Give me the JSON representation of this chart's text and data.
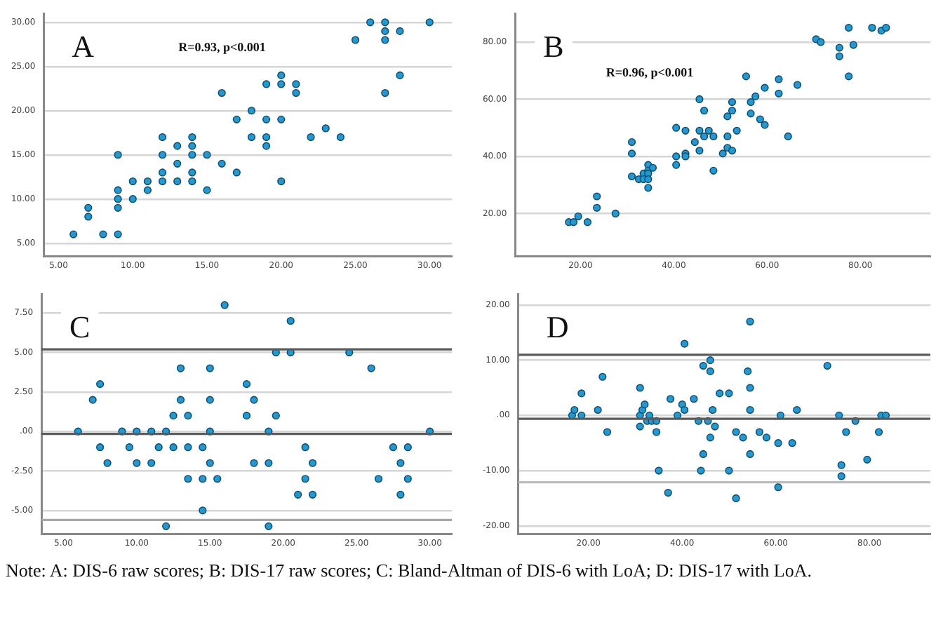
{
  "chart_data": [
    {
      "type": "scatter",
      "title": "A",
      "annotations": [
        "R=0.93, p<0.001"
      ],
      "color": "#1e9ad6",
      "marker": "circle",
      "grid": "y",
      "x": [
        6,
        7,
        7,
        8,
        9,
        9,
        9,
        9,
        9,
        10,
        10,
        11,
        11,
        12,
        12,
        12,
        12,
        13,
        13,
        13,
        14,
        14,
        14,
        14,
        14,
        15,
        15,
        16,
        16,
        17,
        17,
        18,
        18,
        19,
        19,
        19,
        19,
        20,
        20,
        20,
        20,
        21,
        21,
        22,
        23,
        24,
        25,
        26,
        27,
        27,
        27,
        27,
        28,
        28,
        30
      ],
      "values": [
        6,
        9,
        8,
        6,
        6,
        15,
        11,
        10,
        9,
        12,
        10,
        12,
        11,
        17,
        15,
        13,
        12,
        16,
        14,
        12,
        17,
        16,
        15,
        13,
        12,
        15,
        11,
        22,
        14,
        19,
        13,
        20,
        17,
        23,
        19,
        17,
        16,
        24,
        23,
        19,
        12,
        23,
        22,
        17,
        18,
        17,
        28,
        30,
        30,
        29,
        28,
        22,
        29,
        24,
        30
      ],
      "xlim": [
        4,
        31.5
      ],
      "ylim": [
        3.5,
        31
      ],
      "xticks": [
        {
          "value": 5,
          "label": "5.00"
        },
        {
          "value": 10,
          "label": "10.00"
        },
        {
          "value": 15,
          "label": "15.00"
        },
        {
          "value": 20,
          "label": "20.00"
        },
        {
          "value": 25,
          "label": "25.00"
        },
        {
          "value": 30,
          "label": "30.00"
        }
      ],
      "yticks": [
        {
          "value": 5,
          "label": "5.00"
        },
        {
          "value": 10,
          "label": "10.00"
        },
        {
          "value": 15,
          "label": "15.00"
        },
        {
          "value": 20,
          "label": "20.00"
        },
        {
          "value": 25,
          "label": "25.00"
        },
        {
          "value": 30,
          "label": "30.00"
        }
      ]
    },
    {
      "type": "scatter",
      "title": "B",
      "annotations": [
        "R=0.96, p<0.001"
      ],
      "color": "#1e9ad6",
      "marker": "circle",
      "grid": "y",
      "x": [
        17.5,
        18.5,
        19.5,
        21.5,
        23.5,
        23.5,
        27.5,
        31,
        31,
        31,
        32.5,
        33.5,
        33.5,
        34.5,
        34.5,
        34.5,
        34.5,
        34.5,
        35.5,
        40.5,
        40.5,
        40.5,
        42.5,
        42.5,
        42.5,
        44.5,
        45.5,
        45.5,
        45.5,
        46.5,
        46.5,
        47.5,
        48.5,
        48.5,
        50.5,
        51.5,
        51.5,
        51.5,
        52.5,
        52.5,
        52.5,
        53.5,
        55.5,
        56.5,
        56.5,
        57.5,
        58.5,
        59.5,
        59.5,
        62.5,
        62.5,
        64.5,
        66.5,
        70.5,
        71.5,
        75.5,
        75.5,
        77.5,
        77.5,
        78.5,
        82.5,
        84.5,
        85.5
      ],
      "values": [
        17,
        17,
        19,
        17,
        22,
        26,
        20,
        45,
        41,
        33,
        32,
        34,
        32,
        37,
        35,
        34,
        32,
        29,
        36,
        50,
        40,
        37,
        49,
        41,
        40,
        45,
        60,
        49,
        42,
        56,
        47,
        49,
        47,
        35,
        41,
        54,
        47,
        43,
        59,
        56,
        42,
        49,
        68,
        59,
        55,
        61,
        53,
        64,
        51,
        67,
        62,
        47,
        65,
        81,
        80,
        78,
        75,
        85,
        68,
        79,
        85,
        84,
        85
      ],
      "xlim": [
        6,
        95
      ],
      "ylim": [
        5,
        90
      ],
      "xticks": [
        {
          "value": 20,
          "label": "20.00"
        },
        {
          "value": 40,
          "label": "40.00"
        },
        {
          "value": 60,
          "label": "60.00"
        },
        {
          "value": 80,
          "label": "80.00"
        }
      ],
      "yticks": [
        {
          "value": 20,
          "label": "20.00"
        },
        {
          "value": 40,
          "label": "40.00"
        },
        {
          "value": 60,
          "label": "60.00"
        },
        {
          "value": 80,
          "label": "80.00"
        }
      ]
    },
    {
      "type": "scatter",
      "title": "C",
      "color": "#1e9ad6",
      "marker": "circle",
      "grid": "y",
      "x": [
        6,
        7,
        7.5,
        7.5,
        8,
        9,
        9.5,
        10,
        10,
        11,
        11,
        11.5,
        12,
        12,
        12.5,
        12.5,
        13,
        13,
        13.5,
        13.5,
        13.5,
        14.5,
        14.5,
        14.5,
        15,
        15,
        15,
        15,
        15.5,
        16,
        17.5,
        17.5,
        18,
        18,
        19,
        19,
        19,
        19.5,
        19.5,
        20.5,
        20.5,
        21,
        21.5,
        21.5,
        22,
        22,
        24.5,
        26,
        26.5,
        27.5,
        28,
        28,
        28.5,
        28.5,
        30
      ],
      "values": [
        0,
        2,
        3,
        -1,
        -2,
        0,
        -1,
        0,
        -2,
        0,
        -2,
        -1,
        0,
        -6,
        1,
        -1,
        4,
        2,
        1,
        -1,
        -3,
        -1,
        -3,
        -5,
        4,
        2,
        0,
        -2,
        -3,
        8,
        3,
        1,
        2,
        -2,
        0,
        -2,
        -6,
        5,
        1,
        7,
        5,
        -4,
        -1,
        -3,
        -2,
        -4,
        5,
        4,
        -3,
        -1,
        -2,
        -4,
        -1,
        -3,
        0
      ],
      "xlim": [
        3.5,
        31.5
      ],
      "ylim": [
        -6.5,
        8.7
      ],
      "xticks": [
        {
          "value": 5,
          "label": "5.00"
        },
        {
          "value": 10,
          "label": "10.00"
        },
        {
          "value": 15,
          "label": "15.00"
        },
        {
          "value": 20,
          "label": "20.00"
        },
        {
          "value": 25,
          "label": "25.00"
        },
        {
          "value": 30,
          "label": "30.00"
        }
      ],
      "yticks": [
        {
          "value": -5,
          "label": "-5.00"
        },
        {
          "value": -2.5,
          "label": "-2.50"
        },
        {
          "value": 0,
          "label": ".00"
        },
        {
          "value": 2.5,
          "label": "2.50"
        },
        {
          "value": 5,
          "label": "5.00"
        },
        {
          "value": 7.5,
          "label": "7.50"
        }
      ],
      "ref_lines": [
        {
          "axis": "y",
          "value": 5.2,
          "color": "#5a5a5a"
        },
        {
          "axis": "y",
          "value": -0.15,
          "color": "#5a5a5a"
        },
        {
          "axis": "y",
          "value": -5.6,
          "color": "#a8a8a8"
        }
      ]
    },
    {
      "type": "scatter",
      "title": "D",
      "color": "#1e9ad6",
      "marker": "circle",
      "grid": "y",
      "x": [
        16.5,
        17,
        18.5,
        18.5,
        22,
        23,
        24,
        31,
        31,
        31,
        31.5,
        32,
        32.5,
        33,
        33.5,
        34.5,
        34.5,
        35,
        37,
        37.5,
        39,
        40,
        40.5,
        40.5,
        42.5,
        43.5,
        44,
        44.5,
        44.5,
        45.5,
        46,
        46,
        46,
        46.5,
        47,
        48,
        50,
        50,
        51.5,
        51.5,
        53,
        54,
        54.5,
        54.5,
        54.5,
        54.5,
        56.5,
        58,
        60.5,
        60.5,
        61,
        63.5,
        64.5,
        71,
        73.5,
        74,
        74,
        75,
        77,
        79.5,
        82,
        82.5,
        83.5
      ],
      "values": [
        0,
        1,
        0,
        4,
        1,
        7,
        -3,
        5,
        0,
        -2,
        1,
        2,
        -1,
        0,
        -1,
        -1,
        -3,
        -10,
        -14,
        3,
        0,
        2,
        1,
        13,
        3,
        -1,
        -10,
        -7,
        9,
        -1,
        10,
        8,
        -4,
        1,
        -2,
        4,
        4,
        -10,
        -3,
        -15,
        -4,
        8,
        17,
        5,
        1,
        -7,
        -3,
        -4,
        -5,
        -13,
        0,
        -5,
        1,
        9,
        0,
        -9,
        -11,
        -3,
        -1,
        -8,
        -3,
        0,
        0
      ],
      "xlim": [
        5,
        93
      ],
      "ylim": [
        -21.5,
        22
      ],
      "xticks": [
        {
          "value": 20,
          "label": "20.00"
        },
        {
          "value": 40,
          "label": "40.00"
        },
        {
          "value": 60,
          "label": "60.00"
        },
        {
          "value": 80,
          "label": "80.00"
        }
      ],
      "yticks": [
        {
          "value": -20,
          "label": "-20.00"
        },
        {
          "value": -10,
          "label": "-10.00"
        },
        {
          "value": 0,
          "label": ".00"
        },
        {
          "value": 10,
          "label": "10.00"
        },
        {
          "value": 20,
          "label": "20.00"
        }
      ],
      "ref_lines": [
        {
          "axis": "y",
          "value": 11,
          "color": "#5a5a5a"
        },
        {
          "axis": "y",
          "value": -0.6,
          "color": "#5a5a5a"
        },
        {
          "axis": "y",
          "value": -12.1,
          "color": "#bdbdbd"
        }
      ]
    },
    {
      "type": "other",
      "annotations": [
        "Note: A: DIS-6 raw scores; B: DIS-17 raw scores; C: Bland-Altman of DIS-6 with LoA; D: DIS-17 with LoA."
      ]
    }
  ]
}
